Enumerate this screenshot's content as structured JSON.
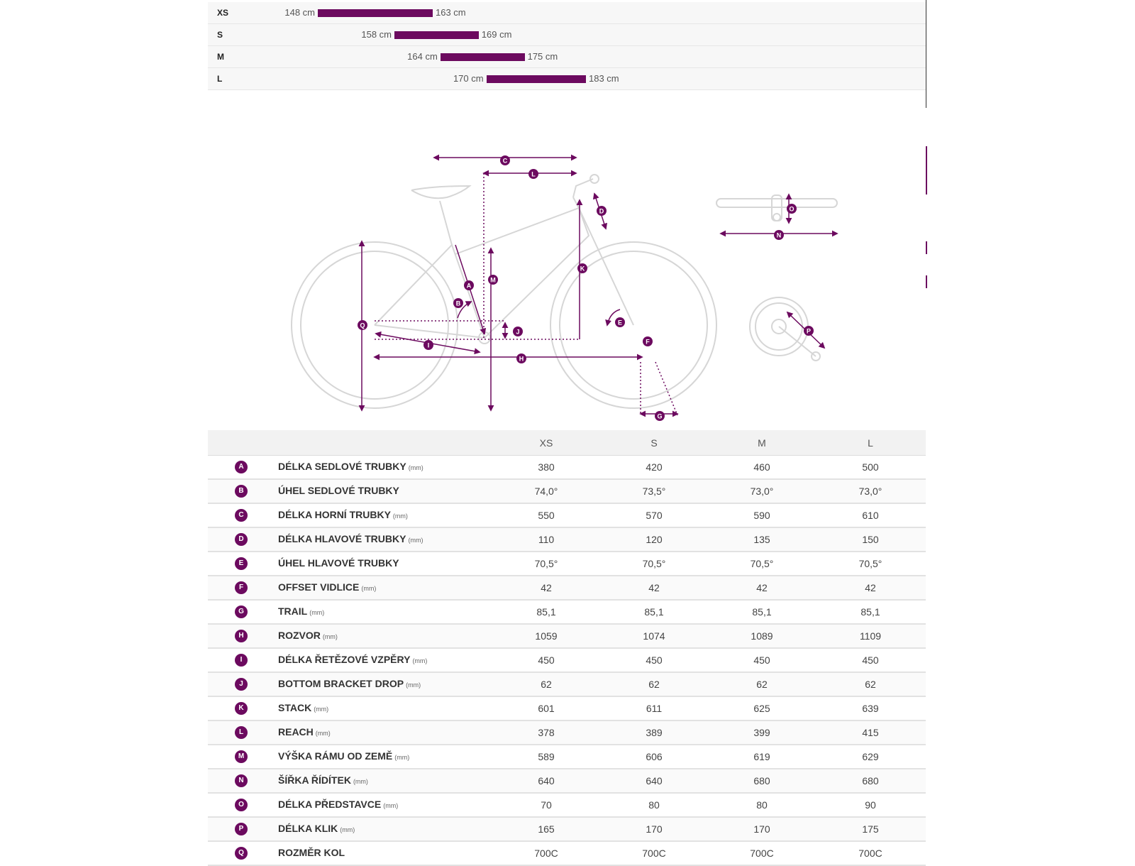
{
  "size_chart": [
    {
      "size": "XS",
      "min": "148 cm",
      "max": "163 cm",
      "min_cm": 148,
      "max_cm": 163
    },
    {
      "size": "S",
      "min": "158 cm",
      "max": "169 cm",
      "min_cm": 158,
      "max_cm": 169
    },
    {
      "size": "M",
      "min": "164 cm",
      "max": "175 cm",
      "min_cm": 164,
      "max_cm": 175
    },
    {
      "size": "L",
      "min": "170 cm",
      "max": "183 cm",
      "min_cm": 170,
      "max_cm": 183
    }
  ],
  "diagram_labels": [
    "A",
    "B",
    "C",
    "D",
    "E",
    "F",
    "G",
    "H",
    "I",
    "J",
    "K",
    "L",
    "M",
    "N",
    "O",
    "P",
    "Q"
  ],
  "colors": {
    "accent": "#6c0a5f",
    "bike_line": "#d8d8d8"
  },
  "table": {
    "columns": [
      "XS",
      "S",
      "M",
      "L"
    ],
    "rows": [
      {
        "badge": "A",
        "name": "DÉLKA SEDLOVÉ TRUBKY",
        "unit": "(mm)",
        "values": [
          "380",
          "420",
          "460",
          "500"
        ]
      },
      {
        "badge": "B",
        "name": "ÚHEL SEDLOVÉ TRUBKY",
        "unit": "",
        "values": [
          "74,0°",
          "73,5°",
          "73,0°",
          "73,0°"
        ]
      },
      {
        "badge": "C",
        "name": "DÉLKA HORNÍ TRUBKY",
        "unit": "(mm)",
        "values": [
          "550",
          "570",
          "590",
          "610"
        ]
      },
      {
        "badge": "D",
        "name": "DÉLKA HLAVOVÉ TRUBKY",
        "unit": "(mm)",
        "values": [
          "110",
          "120",
          "135",
          "150"
        ]
      },
      {
        "badge": "E",
        "name": "ÚHEL HLAVOVÉ TRUBKY",
        "unit": "",
        "values": [
          "70,5°",
          "70,5°",
          "70,5°",
          "70,5°"
        ]
      },
      {
        "badge": "F",
        "name": "OFFSET VIDLICE",
        "unit": "(mm)",
        "values": [
          "42",
          "42",
          "42",
          "42"
        ]
      },
      {
        "badge": "G",
        "name": "TRAIL",
        "unit": "(mm)",
        "values": [
          "85,1",
          "85,1",
          "85,1",
          "85,1"
        ]
      },
      {
        "badge": "H",
        "name": "ROZVOR",
        "unit": "(mm)",
        "values": [
          "1059",
          "1074",
          "1089",
          "1109"
        ]
      },
      {
        "badge": "I",
        "name": "DÉLKA ŘETĚZOVÉ VZPĚRY",
        "unit": "(mm)",
        "values": [
          "450",
          "450",
          "450",
          "450"
        ]
      },
      {
        "badge": "J",
        "name": "BOTTOM BRACKET DROP",
        "unit": "(mm)",
        "values": [
          "62",
          "62",
          "62",
          "62"
        ]
      },
      {
        "badge": "K",
        "name": "STACK",
        "unit": "(mm)",
        "values": [
          "601",
          "611",
          "625",
          "639"
        ]
      },
      {
        "badge": "L",
        "name": "REACH",
        "unit": "(mm)",
        "values": [
          "378",
          "389",
          "399",
          "415"
        ]
      },
      {
        "badge": "M",
        "name": "VÝŠKA RÁMU OD ZEMĚ",
        "unit": "(mm)",
        "values": [
          "589",
          "606",
          "619",
          "629"
        ]
      },
      {
        "badge": "N",
        "name": "ŠÍŘKA ŘÍDÍTEK",
        "unit": "(mm)",
        "values": [
          "640",
          "640",
          "680",
          "680"
        ]
      },
      {
        "badge": "O",
        "name": "DÉLKA PŘEDSTAVCE",
        "unit": "(mm)",
        "values": [
          "70",
          "80",
          "80",
          "90"
        ]
      },
      {
        "badge": "P",
        "name": "DÉLKA KLIK",
        "unit": "(mm)",
        "values": [
          "165",
          "170",
          "170",
          "175"
        ]
      },
      {
        "badge": "Q",
        "name": "ROZMĚR KOL",
        "unit": "",
        "values": [
          "700C",
          "700C",
          "700C",
          "700C"
        ]
      }
    ]
  }
}
